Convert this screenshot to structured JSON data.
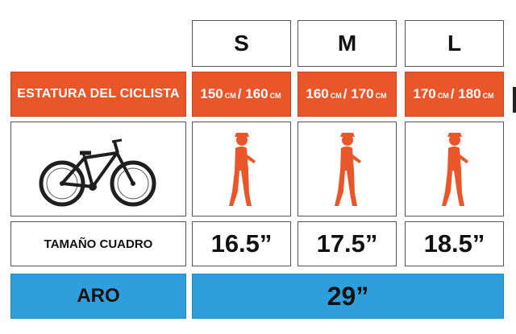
{
  "columns": [
    {
      "size": "S",
      "height_from": "150",
      "height_to": "160",
      "frame": "16.5”"
    },
    {
      "size": "M",
      "height_from": "160",
      "height_to": "170",
      "frame": "17.5”"
    },
    {
      "size": "L",
      "height_from": "170",
      "height_to": "180",
      "frame": "18.5”"
    }
  ],
  "labels": {
    "rider_height": "ESTATURA DEL CICLISTA",
    "frame_size": "TAMAÑO CUADRO",
    "wheel": "ARO",
    "unit": "CM",
    "separator": "/"
  },
  "wheel_size": "29”",
  "colors": {
    "orange": "#e8562a",
    "blue": "#2e9fda",
    "bike": "#1f1f1f"
  },
  "icons": [
    "bicycle-icon",
    "rider-icon"
  ]
}
